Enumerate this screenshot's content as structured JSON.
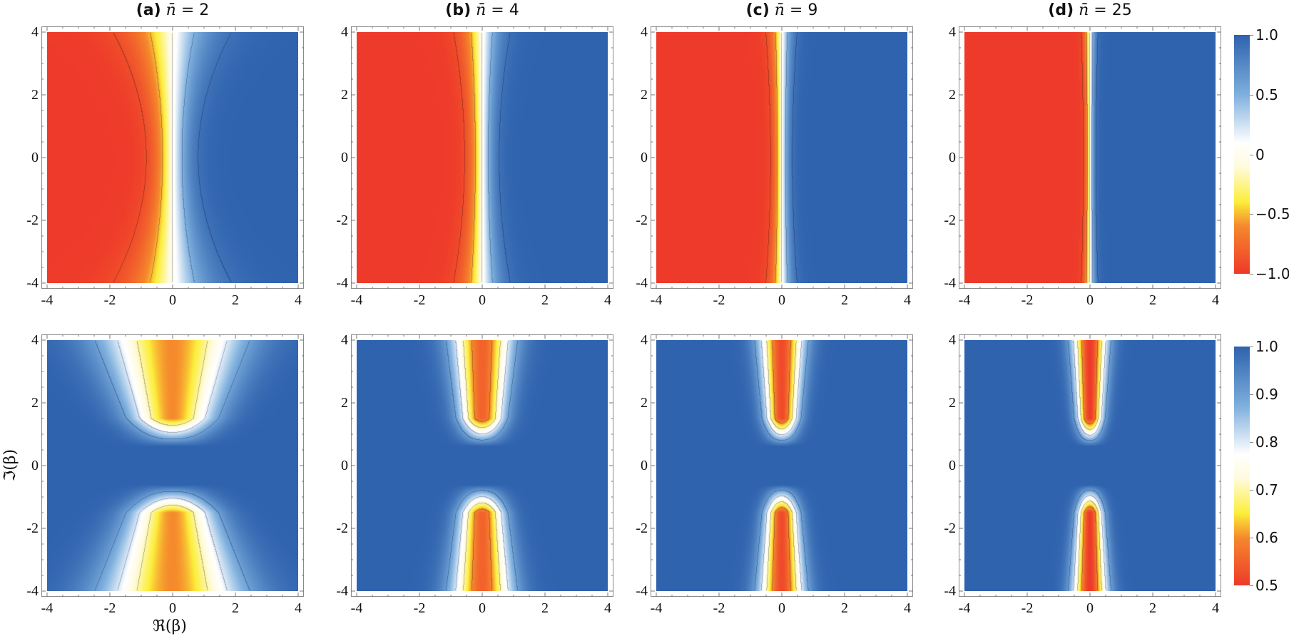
{
  "chart_data": {
    "type": "heatmap",
    "layout": {
      "rows": 2,
      "cols": 4,
      "grid": false,
      "colorbar_position": "right"
    },
    "columns": [
      {
        "label": "(a)",
        "nbar": "2"
      },
      {
        "label": "(b)",
        "nbar": "4"
      },
      {
        "label": "(c)",
        "nbar": "9"
      },
      {
        "label": "(d)",
        "nbar": "25"
      }
    ],
    "titles": [
      "(a) n̄ = 2",
      "(b) n̄ = 4",
      "(c) n̄ = 9",
      "(d) n̄ = 25"
    ],
    "xlabel": "ℜ(β)",
    "ylabel": "ℑ(β)",
    "xlim": [
      -4,
      4
    ],
    "ylim": [
      -4,
      4
    ],
    "xticks": [
      "-4",
      "-2",
      "0",
      "2",
      "4"
    ],
    "yticks": [
      "4",
      "2",
      "0",
      "-2",
      "-4"
    ],
    "rows": [
      {
        "name": "top",
        "description": "Antisymmetric in Re(beta): red (-1) for Re<0, blue (+1) for Re>0, sharp transition at Re=0 narrowing with increasing n̄",
        "colorbar": {
          "min": -1.0,
          "max": 1.0,
          "ticks": [
            "1.0",
            "0.5",
            "0",
            "−0.5",
            "−1.0"
          ]
        },
        "transition_width": [
          0.9,
          0.6,
          0.38,
          0.22
        ],
        "contour_levels": [
          -0.9,
          -0.5,
          0,
          0.5,
          0.9
        ]
      },
      {
        "name": "bottom",
        "description": "Hourglass pattern: blue (~1.0) background, minima (~0.55-0.6) lobes along Im axis above/below origin, narrowing with increasing n̄",
        "colorbar": {
          "min": 0.5,
          "max": 1.0,
          "ticks": [
            "1.0",
            "0.9",
            "0.8",
            "0.7",
            "0.6",
            "0.5"
          ]
        },
        "lobe_width": [
          1.35,
          0.95,
          0.7,
          0.55
        ],
        "lobe_min": [
          0.6,
          0.55,
          0.52,
          0.5
        ],
        "contour_levels": [
          0.6,
          0.7,
          0.8,
          0.9
        ]
      }
    ],
    "colormap": {
      "stops": [
        {
          "t": 0.0,
          "color": "#ee3a2a"
        },
        {
          "t": 0.2,
          "color": "#f58a2c"
        },
        {
          "t": 0.3,
          "color": "#fcee3a"
        },
        {
          "t": 0.45,
          "color": "#fffbe0"
        },
        {
          "t": 0.55,
          "color": "#ffffff"
        },
        {
          "t": 0.75,
          "color": "#7fb0de"
        },
        {
          "t": 1.0,
          "color": "#2f63ae"
        }
      ]
    }
  },
  "colorbar_top": {
    "ticks": [
      "1.0",
      "0.5",
      "0",
      "−0.5",
      "−1.0"
    ]
  },
  "colorbar_bottom": {
    "ticks": [
      "1.0",
      "0.9",
      "0.8",
      "0.7",
      "0.6",
      "0.5"
    ]
  },
  "axis_labels": {
    "x": "ℜ(β)",
    "y": "ℑ(β)"
  }
}
